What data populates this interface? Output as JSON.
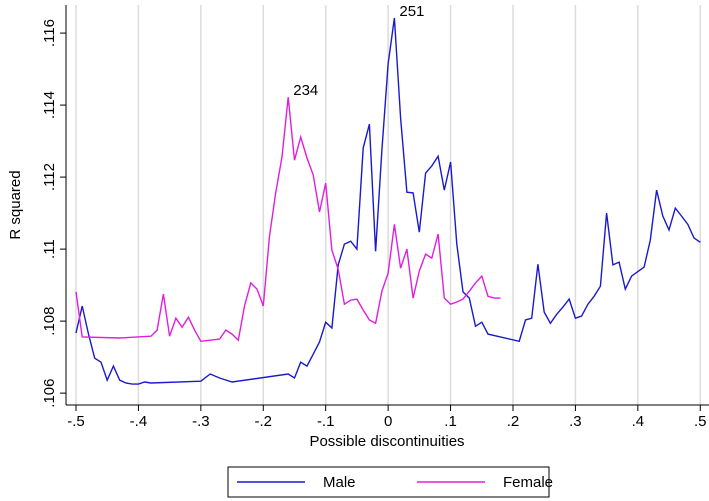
{
  "chart_data": {
    "type": "line",
    "xlabel": "Possible discontinuities",
    "ylabel": "R squared",
    "xlim": [
      -0.516,
      0.514
    ],
    "ylim": [
      0.10567,
      0.11678
    ],
    "xticks": [
      {
        "value": -0.5,
        "label": "-.5"
      },
      {
        "value": -0.4,
        "label": "-.4"
      },
      {
        "value": -0.3,
        "label": "-.3"
      },
      {
        "value": -0.2,
        "label": "-.2"
      },
      {
        "value": -0.1,
        "label": "-.1"
      },
      0,
      {
        "value": 0.1,
        "label": ".1"
      },
      {
        "value": 0.2,
        "label": ".2"
      },
      {
        "value": 0.3,
        "label": ".3"
      },
      {
        "value": 0.4,
        "label": ".4"
      },
      {
        "value": 0.5,
        "label": ".5"
      }
    ],
    "yticks": [
      {
        "value": 0.106,
        "label": ".106"
      },
      {
        "value": 0.108,
        "label": ".108"
      },
      {
        "value": 0.11,
        "label": ".11"
      },
      {
        "value": 0.112,
        "label": ".112"
      },
      {
        "value": 0.114,
        "label": ".114"
      },
      {
        "value": 0.116,
        "label": ".116"
      }
    ],
    "grid": "x",
    "legend": "bottom",
    "annotations": [
      {
        "text": "251",
        "x": 0.01,
        "y": 0.11642
      },
      {
        "text": "234",
        "x": -0.16,
        "y": 0.11422
      }
    ],
    "series": [
      {
        "name": "Male",
        "color": "#1a1acc",
        "x": [
          -0.5,
          -0.49,
          -0.48,
          -0.47,
          -0.46,
          -0.45,
          -0.44,
          -0.43,
          -0.42,
          -0.41,
          -0.4,
          -0.39,
          -0.38,
          -0.3,
          -0.285,
          -0.27,
          -0.25,
          -0.16,
          -0.15,
          -0.14,
          -0.13,
          -0.12,
          -0.11,
          -0.1,
          -0.09,
          -0.08,
          -0.07,
          -0.06,
          -0.05,
          -0.04,
          -0.03,
          -0.02,
          -0.01,
          0,
          0.01,
          0.02,
          0.03,
          0.04,
          0.05,
          0.06,
          0.07,
          0.08,
          0.09,
          0.1,
          0.11,
          0.12,
          0.13,
          0.14,
          0.15,
          0.16,
          0.21,
          0.22,
          0.23,
          0.24,
          0.25,
          0.26,
          0.27,
          0.28,
          0.29,
          0.3,
          0.31,
          0.32,
          0.33,
          0.34,
          0.35,
          0.36,
          0.37,
          0.38,
          0.39,
          0.41,
          0.42,
          0.43,
          0.44,
          0.45,
          0.46,
          0.47,
          0.48,
          0.49,
          0.5
        ],
        "values": [
          0.10767,
          0.10842,
          0.10764,
          0.10697,
          0.10686,
          0.10636,
          0.10675,
          0.10636,
          0.10628,
          0.10625,
          0.10625,
          0.10631,
          0.10628,
          0.10633,
          0.10653,
          0.10642,
          0.10631,
          0.10653,
          0.10642,
          0.10686,
          0.10675,
          0.10708,
          0.10742,
          0.10797,
          0.10781,
          0.10956,
          0.11014,
          0.11022,
          0.11,
          0.11281,
          0.11347,
          0.10994,
          0.11275,
          0.11514,
          0.11642,
          0.11364,
          0.11158,
          0.11156,
          0.11047,
          0.11211,
          0.11231,
          0.11258,
          0.11164,
          0.11242,
          0.11014,
          0.10881,
          0.10864,
          0.10786,
          0.10797,
          0.10764,
          0.10744,
          0.10803,
          0.10808,
          0.10958,
          0.10825,
          0.10794,
          0.10819,
          0.10839,
          0.10861,
          0.10808,
          0.10814,
          0.10847,
          0.10869,
          0.10897,
          0.111,
          0.10956,
          0.10964,
          0.10889,
          0.10925,
          0.1095,
          0.11025,
          0.11164,
          0.11092,
          0.11053,
          0.11114,
          0.11092,
          0.11069,
          0.11031,
          0.11019
        ]
      },
      {
        "name": "Female",
        "color": "#e01ee0",
        "x": [
          -0.5,
          -0.49,
          -0.43,
          -0.38,
          -0.37,
          -0.36,
          -0.35,
          -0.34,
          -0.33,
          -0.32,
          -0.31,
          -0.3,
          -0.27,
          -0.26,
          -0.25,
          -0.24,
          -0.23,
          -0.22,
          -0.21,
          -0.2,
          -0.19,
          -0.18,
          -0.17,
          -0.16,
          -0.15,
          -0.14,
          -0.13,
          -0.12,
          -0.11,
          -0.1,
          -0.09,
          -0.08,
          -0.07,
          -0.06,
          -0.05,
          -0.04,
          -0.03,
          -0.02,
          -0.01,
          0,
          0.01,
          0.02,
          0.03,
          0.04,
          0.05,
          0.06,
          0.07,
          0.08,
          0.09,
          0.1,
          0.11,
          0.12,
          0.13,
          0.14,
          0.15,
          0.16,
          0.17,
          0.18
        ],
        "values": [
          0.10881,
          0.10756,
          0.10753,
          0.10758,
          0.10775,
          0.10875,
          0.10758,
          0.10808,
          0.10783,
          0.10811,
          0.10775,
          0.10744,
          0.1075,
          0.10775,
          0.10764,
          0.10747,
          0.10842,
          0.10906,
          0.10889,
          0.10842,
          0.11036,
          0.11158,
          0.11256,
          0.11422,
          0.11247,
          0.11311,
          0.11253,
          0.11206,
          0.11103,
          0.11183,
          0.10997,
          0.10944,
          0.10847,
          0.10858,
          0.10861,
          0.10831,
          0.10803,
          0.10794,
          0.10883,
          0.10933,
          0.11069,
          0.10947,
          0.11,
          0.10864,
          0.10939,
          0.10986,
          0.10975,
          0.11042,
          0.10864,
          0.10847,
          0.10853,
          0.10861,
          0.10883,
          0.10906,
          0.10925,
          0.10869,
          0.10864,
          0.10864
        ]
      }
    ]
  }
}
